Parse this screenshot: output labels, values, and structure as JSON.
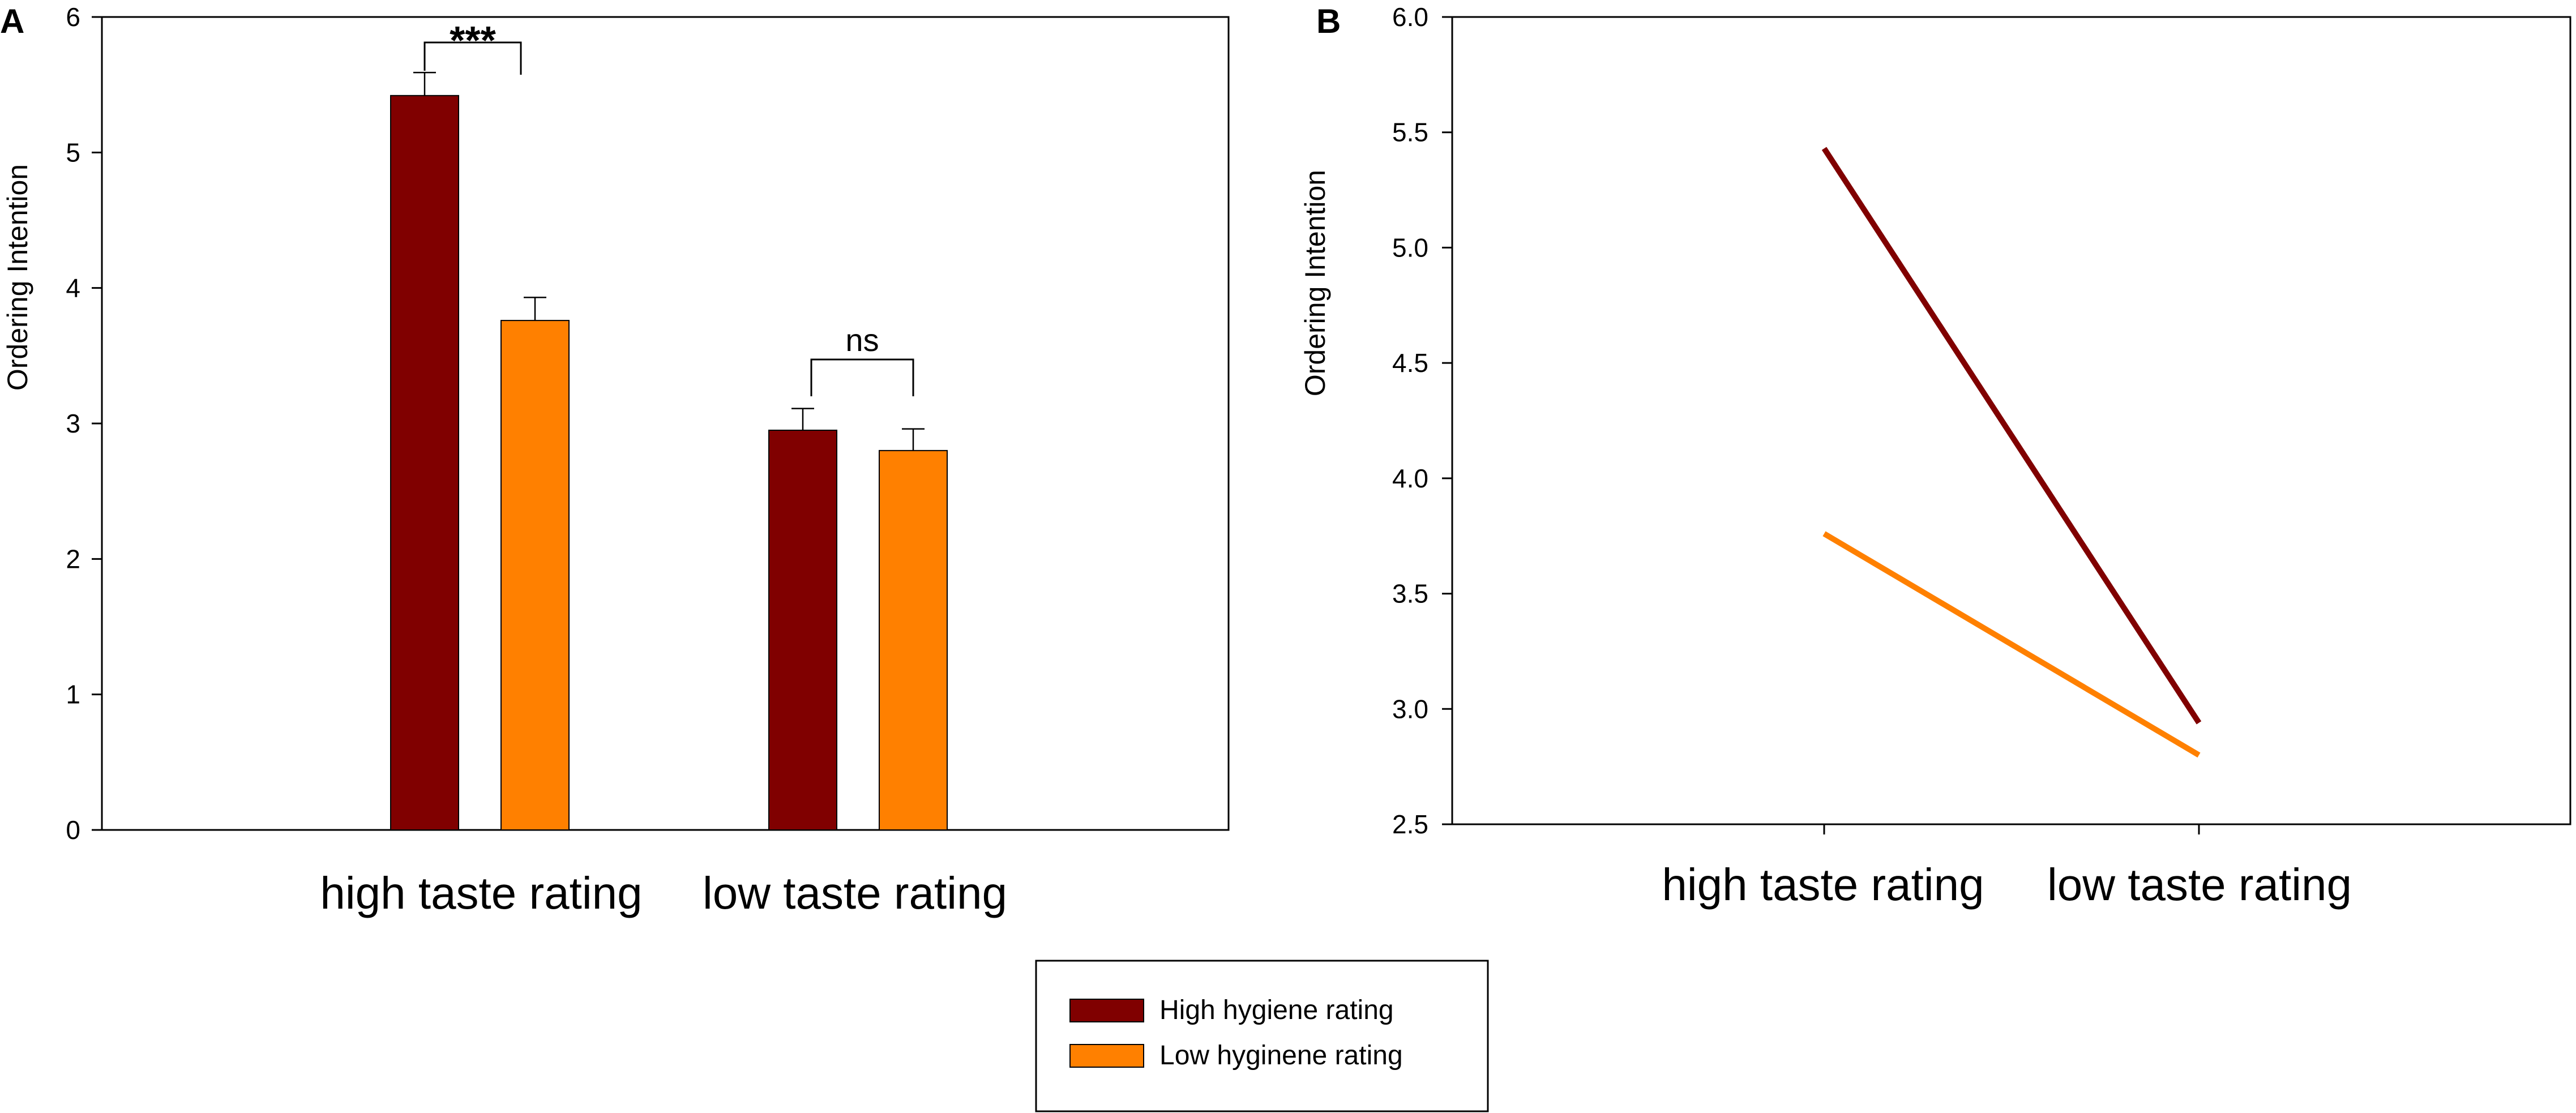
{
  "colors": {
    "high": "#800000",
    "low": "#ff8000",
    "axis": "#000000"
  },
  "panel_a_label": "A",
  "panel_b_label": "B",
  "legend": {
    "items": [
      {
        "label": "High hygiene rating",
        "color": "#800000"
      },
      {
        "label": "Low hyginene rating",
        "color": "#ff8000"
      }
    ]
  },
  "chart_data": [
    {
      "type": "bar",
      "panel": "A",
      "categories": [
        "high taste rating",
        "low taste rating"
      ],
      "series": [
        {
          "name": "High hygiene rating",
          "values": [
            5.42,
            2.95
          ],
          "errors": [
            0.17,
            0.16
          ]
        },
        {
          "name": "Low hyginene rating",
          "values": [
            3.76,
            2.8
          ],
          "errors": [
            0.17,
            0.16
          ]
        }
      ],
      "ylabel": "Ordering Intention",
      "xlabel": "",
      "ylim": [
        0,
        6
      ],
      "yticks": [
        0,
        1,
        2,
        3,
        4,
        5,
        6
      ],
      "ytick_labels": [
        "0",
        "1",
        "2",
        "3",
        "4",
        "5",
        "6"
      ],
      "annotations": [
        {
          "text": "***",
          "category": "high taste rating"
        },
        {
          "text": "ns",
          "category": "low taste rating"
        }
      ],
      "grid": false
    },
    {
      "type": "line",
      "panel": "B",
      "categories": [
        "high taste rating",
        "low taste rating"
      ],
      "series": [
        {
          "name": "High hygiene rating",
          "values": [
            5.43,
            2.94
          ]
        },
        {
          "name": "Low hyginene rating",
          "values": [
            3.76,
            2.8
          ]
        }
      ],
      "ylabel": "Ordering Intention",
      "xlabel": "",
      "ylim": [
        2.5,
        6.0
      ],
      "yticks": [
        2.5,
        3.0,
        3.5,
        4.0,
        4.5,
        5.0,
        5.5,
        6.0
      ],
      "ytick_labels": [
        "2.5",
        "3.0",
        "3.5",
        "4.0",
        "4.5",
        "5.0",
        "5.5",
        "6.0"
      ],
      "grid": false
    }
  ]
}
